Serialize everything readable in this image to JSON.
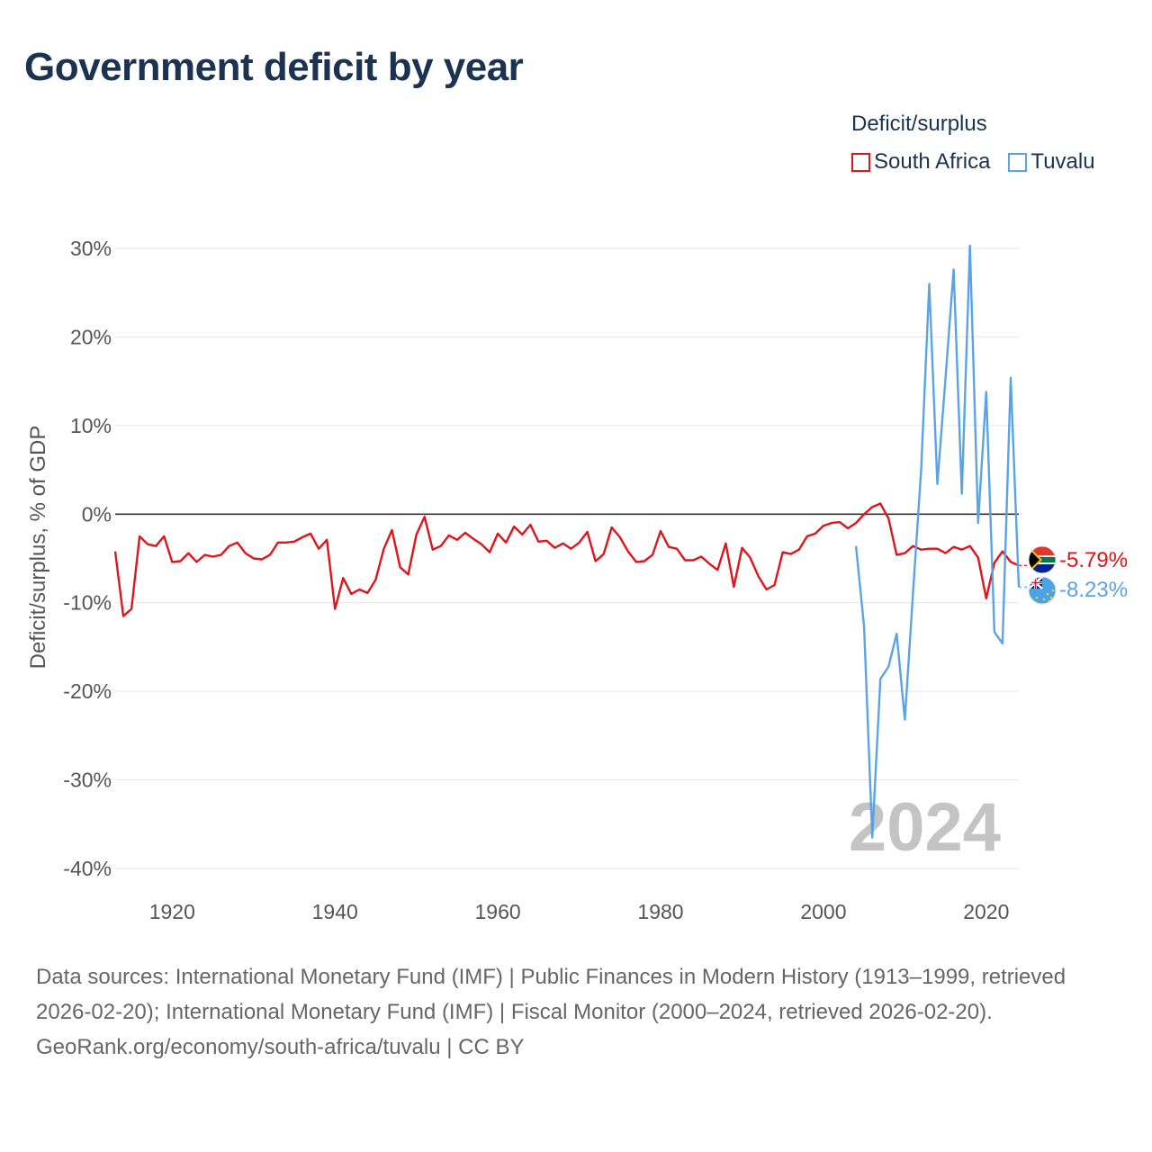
{
  "title": "Government deficit by year",
  "legend": {
    "title": "Deficit/surplus",
    "items": [
      {
        "label": "South Africa",
        "color": "#e0141b"
      },
      {
        "label": "Tuvalu",
        "color": "#5aa3e6"
      }
    ]
  },
  "chart_data": {
    "type": "line",
    "title": "Government deficit by year",
    "xlabel": "",
    "ylabel": "Deficit/surplus, % of GDP",
    "xlim": [
      1913,
      2024
    ],
    "ylim": [
      -40,
      30
    ],
    "yticks": [
      30,
      20,
      10,
      0,
      -10,
      -20,
      -30,
      -40
    ],
    "ytick_labels": [
      "30%",
      "20%",
      "10%",
      "0%",
      "-10%",
      "-20%",
      "-30%",
      "-40%"
    ],
    "xticks": [
      1920,
      1940,
      1960,
      1980,
      2000,
      2020
    ],
    "xtick_labels": [
      "1920",
      "1940",
      "1960",
      "1980",
      "2000",
      "2020"
    ],
    "year_watermark": "2024",
    "grid": true,
    "zero_line": true,
    "series": [
      {
        "name": "South Africa",
        "color": "#e0141b",
        "end_label": "-5.79%",
        "flag": "south-africa-flag-icon",
        "points": [
          [
            1913,
            -4.2
          ],
          [
            1914,
            -11.5
          ],
          [
            1915,
            -10.7
          ],
          [
            1916,
            -2.5
          ],
          [
            1917,
            -3.4
          ],
          [
            1918,
            -3.6
          ],
          [
            1919,
            -2.5
          ],
          [
            1920,
            -5.4
          ],
          [
            1921,
            -5.3
          ],
          [
            1922,
            -4.4
          ],
          [
            1923,
            -5.4
          ],
          [
            1924,
            -4.6
          ],
          [
            1925,
            -4.8
          ],
          [
            1926,
            -4.6
          ],
          [
            1927,
            -3.6
          ],
          [
            1928,
            -3.2
          ],
          [
            1929,
            -4.4
          ],
          [
            1930,
            -5.0
          ],
          [
            1931,
            -5.1
          ],
          [
            1932,
            -4.6
          ],
          [
            1933,
            -3.2
          ],
          [
            1934,
            -3.2
          ],
          [
            1935,
            -3.1
          ],
          [
            1936,
            -2.6
          ],
          [
            1937,
            -2.2
          ],
          [
            1938,
            -3.9
          ],
          [
            1939,
            -2.9
          ],
          [
            1940,
            -10.7
          ],
          [
            1941,
            -7.2
          ],
          [
            1942,
            -9.0
          ],
          [
            1943,
            -8.5
          ],
          [
            1944,
            -8.9
          ],
          [
            1945,
            -7.4
          ],
          [
            1946,
            -3.9
          ],
          [
            1947,
            -1.8
          ],
          [
            1948,
            -6.0
          ],
          [
            1949,
            -6.8
          ],
          [
            1950,
            -2.3
          ],
          [
            1951,
            -0.3
          ],
          [
            1952,
            -4.0
          ],
          [
            1953,
            -3.6
          ],
          [
            1954,
            -2.4
          ],
          [
            1955,
            -2.9
          ],
          [
            1956,
            -2.1
          ],
          [
            1957,
            -2.8
          ],
          [
            1958,
            -3.4
          ],
          [
            1959,
            -4.3
          ],
          [
            1960,
            -2.2
          ],
          [
            1961,
            -3.2
          ],
          [
            1962,
            -1.4
          ],
          [
            1963,
            -2.3
          ],
          [
            1964,
            -1.2
          ],
          [
            1965,
            -3.1
          ],
          [
            1966,
            -3.0
          ],
          [
            1967,
            -3.8
          ],
          [
            1968,
            -3.3
          ],
          [
            1969,
            -3.9
          ],
          [
            1970,
            -3.2
          ],
          [
            1971,
            -2.0
          ],
          [
            1972,
            -5.3
          ],
          [
            1973,
            -4.5
          ],
          [
            1974,
            -1.5
          ],
          [
            1975,
            -2.6
          ],
          [
            1976,
            -4.2
          ],
          [
            1977,
            -5.4
          ],
          [
            1978,
            -5.3
          ],
          [
            1979,
            -4.6
          ],
          [
            1980,
            -1.9
          ],
          [
            1981,
            -3.7
          ],
          [
            1982,
            -3.9
          ],
          [
            1983,
            -5.2
          ],
          [
            1984,
            -5.2
          ],
          [
            1985,
            -4.8
          ],
          [
            1986,
            -5.6
          ],
          [
            1987,
            -6.3
          ],
          [
            1988,
            -3.3
          ],
          [
            1989,
            -8.2
          ],
          [
            1990,
            -3.8
          ],
          [
            1991,
            -4.9
          ],
          [
            1992,
            -7.0
          ],
          [
            1993,
            -8.5
          ],
          [
            1994,
            -8.0
          ],
          [
            1995,
            -4.3
          ],
          [
            1996,
            -4.5
          ],
          [
            1997,
            -4.0
          ],
          [
            1998,
            -2.5
          ],
          [
            1999,
            -2.2
          ],
          [
            2000,
            -1.3
          ],
          [
            2001,
            -1.0
          ],
          [
            2002,
            -0.9
          ],
          [
            2003,
            -1.6
          ],
          [
            2004,
            -1.0
          ],
          [
            2005,
            0.0
          ],
          [
            2006,
            0.8
          ],
          [
            2007,
            1.2
          ],
          [
            2008,
            -0.5
          ],
          [
            2009,
            -4.6
          ],
          [
            2010,
            -4.4
          ],
          [
            2011,
            -3.6
          ],
          [
            2012,
            -4.0
          ],
          [
            2013,
            -3.9
          ],
          [
            2014,
            -3.9
          ],
          [
            2015,
            -4.4
          ],
          [
            2016,
            -3.7
          ],
          [
            2017,
            -4.0
          ],
          [
            2018,
            -3.6
          ],
          [
            2019,
            -4.9
          ],
          [
            2020,
            -9.5
          ],
          [
            2021,
            -5.5
          ],
          [
            2022,
            -4.2
          ],
          [
            2023,
            -5.4
          ],
          [
            2024,
            -5.79
          ]
        ]
      },
      {
        "name": "Tuvalu",
        "color": "#5aa3e6",
        "end_label": "-8.23%",
        "flag": "tuvalu-flag-icon",
        "points": [
          [
            2004,
            -3.6
          ],
          [
            2005,
            -12.7
          ],
          [
            2006,
            -36.5
          ],
          [
            2007,
            -18.6
          ],
          [
            2008,
            -17.2
          ],
          [
            2009,
            -13.5
          ],
          [
            2010,
            -23.2
          ],
          [
            2011,
            -9.0
          ],
          [
            2012,
            5.0
          ],
          [
            2013,
            26.0
          ],
          [
            2014,
            3.4
          ],
          [
            2015,
            15.4
          ],
          [
            2016,
            27.6
          ],
          [
            2017,
            2.3
          ],
          [
            2018,
            30.3
          ],
          [
            2019,
            -1.0
          ],
          [
            2020,
            13.8
          ],
          [
            2021,
            -13.3
          ],
          [
            2022,
            -14.6
          ],
          [
            2023,
            15.4
          ],
          [
            2024,
            -8.23
          ]
        ]
      }
    ]
  },
  "source": {
    "line1": "Data sources: International Monetary Fund (IMF) | Public Finances in Modern History (1913–1999, retrieved 2026-02-20); International Monetary Fund (IMF) | Fiscal Monitor (2000–2024, retrieved 2026-02-20).",
    "line2": "GeoRank.org/economy/south-africa/tuvalu | CC BY"
  }
}
